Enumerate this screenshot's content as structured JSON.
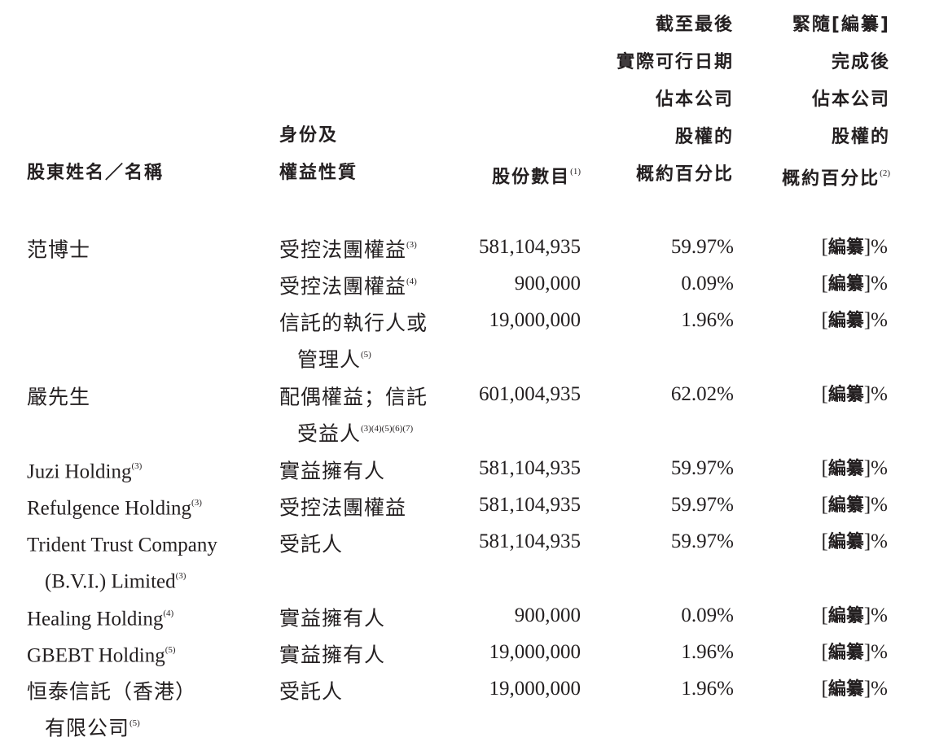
{
  "table": {
    "headers": {
      "name": {
        "lines": [
          "股東姓名／名稱"
        ],
        "note": ""
      },
      "capacity": {
        "lines": [
          "身份及",
          "權益性質"
        ],
        "note": ""
      },
      "shares": {
        "lines": [
          "股份數目"
        ],
        "note": "(1)"
      },
      "pct_current": {
        "lines": [
          "截至最後",
          "實際可行日期",
          "佔本公司",
          "股權的",
          "概約百分比"
        ],
        "note": ""
      },
      "pct_after": {
        "lines": [
          "緊隨[編纂]",
          "完成後",
          "佔本公司",
          "股權的",
          "概約百分比"
        ],
        "note": "(2)"
      }
    },
    "rows": [
      {
        "name": "范博士",
        "name_note": "",
        "name_cont": "",
        "name_cont_note": "",
        "capacity": "受控法團權益",
        "capacity_note": "(3)",
        "capacity_cont": "",
        "capacity_cont_note": "",
        "shares": "581,104,935",
        "pct_current": "59.97%",
        "pct_after_bracket": "編纂",
        "pct_after_suffix": "%"
      },
      {
        "name": "",
        "name_note": "",
        "name_cont": "",
        "name_cont_note": "",
        "capacity": "受控法團權益",
        "capacity_note": "(4)",
        "capacity_cont": "",
        "capacity_cont_note": "",
        "shares": "900,000",
        "pct_current": "0.09%",
        "pct_after_bracket": "編纂",
        "pct_after_suffix": "%"
      },
      {
        "name": "",
        "name_note": "",
        "name_cont": "",
        "name_cont_note": "",
        "capacity": "信託的執行人或",
        "capacity_note": "",
        "capacity_cont": "管理人",
        "capacity_cont_note": "(5)",
        "shares": "19,000,000",
        "pct_current": "1.96%",
        "pct_after_bracket": "編纂",
        "pct_after_suffix": "%"
      },
      {
        "name": "嚴先生",
        "name_note": "",
        "name_cont": "",
        "name_cont_note": "",
        "capacity": "配偶權益；信託",
        "capacity_note": "",
        "capacity_cont": "受益人",
        "capacity_cont_note": "(3)(4)(5)(6)(7)",
        "shares": "601,004,935",
        "pct_current": "62.02%",
        "pct_after_bracket": "編纂",
        "pct_after_suffix": "%"
      },
      {
        "name": "Juzi Holding",
        "name_note": "(3)",
        "name_cont": "",
        "name_cont_note": "",
        "capacity": "實益擁有人",
        "capacity_note": "",
        "capacity_cont": "",
        "capacity_cont_note": "",
        "shares": "581,104,935",
        "pct_current": "59.97%",
        "pct_after_bracket": "編纂",
        "pct_after_suffix": "%"
      },
      {
        "name": "Refulgence Holding",
        "name_note": "(3)",
        "name_cont": "",
        "name_cont_note": "",
        "capacity": "受控法團權益",
        "capacity_note": "",
        "capacity_cont": "",
        "capacity_cont_note": "",
        "shares": "581,104,935",
        "pct_current": "59.97%",
        "pct_after_bracket": "編纂",
        "pct_after_suffix": "%"
      },
      {
        "name": "Trident Trust Company",
        "name_note": "",
        "name_cont": "(B.V.I.) Limited",
        "name_cont_note": "(3)",
        "capacity": "受託人",
        "capacity_note": "",
        "capacity_cont": "",
        "capacity_cont_note": "",
        "shares": "581,104,935",
        "pct_current": "59.97%",
        "pct_after_bracket": "編纂",
        "pct_after_suffix": "%"
      },
      {
        "name": "Healing Holding",
        "name_note": "(4)",
        "name_cont": "",
        "name_cont_note": "",
        "capacity": "實益擁有人",
        "capacity_note": "",
        "capacity_cont": "",
        "capacity_cont_note": "",
        "shares": "900,000",
        "pct_current": "0.09%",
        "pct_after_bracket": "編纂",
        "pct_after_suffix": "%"
      },
      {
        "name": "GBEBT Holding",
        "name_note": "(5)",
        "name_cont": "",
        "name_cont_note": "",
        "capacity": "實益擁有人",
        "capacity_note": "",
        "capacity_cont": "",
        "capacity_cont_note": "",
        "shares": "19,000,000",
        "pct_current": "1.96%",
        "pct_after_bracket": "編纂",
        "pct_after_suffix": "%"
      },
      {
        "name": "恒泰信託（香港）",
        "name_note": "",
        "name_cont": "有限公司",
        "name_cont_note": "(5)",
        "capacity": "受託人",
        "capacity_note": "",
        "capacity_cont": "",
        "capacity_cont_note": "",
        "shares": "19,000,000",
        "pct_current": "1.96%",
        "pct_after_bracket": "編纂",
        "pct_after_suffix": "%"
      }
    ]
  }
}
